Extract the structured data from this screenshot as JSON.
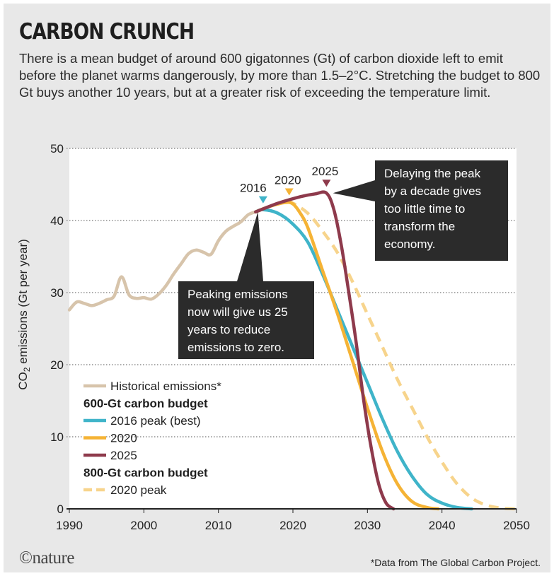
{
  "title": "CARBON CRUNCH",
  "subtitle": "There is a mean budget of around 600 gigatonnes (Gt) of carbon dioxide left to emit before the planet warms dangerously, by more than 1.5–2°C. Stretching the budget to 800 Gt buys another 10 years, but at a greater risk of exceeding the temperature limit.",
  "footer": {
    "logo": "©nature",
    "footnote": "*Data from The Global Carbon Project."
  },
  "annotations": {
    "now": "Peaking emissions now will give us 25 years to reduce emissions to zero.",
    "delay": "Delaying the peak by a decade gives too little time to transform the economy."
  },
  "peak_markers": [
    {
      "label": "2016",
      "year": 2016,
      "value": 41.5,
      "color": "#3fb4c9"
    },
    {
      "label": "2020",
      "year": 2019.5,
      "value": 42.6,
      "color": "#f5b335"
    },
    {
      "label": "2025",
      "year": 2024.5,
      "value": 43.8,
      "color": "#8e3a4c"
    }
  ],
  "legend": [
    {
      "type": "item",
      "label": "Historical emissions*",
      "color": "#d7c4ab",
      "dashed": false
    },
    {
      "type": "heading",
      "label": "600-Gt carbon budget"
    },
    {
      "type": "item",
      "label": "2016 peak (best)",
      "color": "#3fb4c9",
      "dashed": false
    },
    {
      "type": "item",
      "label": "2020",
      "color": "#f5b335",
      "dashed": false
    },
    {
      "type": "item",
      "label": "2025",
      "color": "#8e3a4c",
      "dashed": false
    },
    {
      "type": "heading",
      "label": "800-Gt carbon budget"
    },
    {
      "type": "item",
      "label": "2020 peak",
      "color": "#f7d48c",
      "dashed": true
    }
  ],
  "colors": {
    "background": "#e8e8e8",
    "plot_background": "#ffffff",
    "annotation_box": "#2b2b2b",
    "historical": "#d7c4ab",
    "teal": "#3fb4c9",
    "yellow": "#f5b335",
    "maroon": "#8e3a4c",
    "light_yellow": "#f7d48c"
  },
  "chart_data": {
    "type": "line",
    "xlabel": "",
    "ylabel": "CO2 emissions (Gt per year)",
    "xlim": [
      1990,
      2050
    ],
    "ylim": [
      0,
      50
    ],
    "x_ticks": [
      "1990",
      "2000",
      "2010",
      "2020",
      "2030",
      "2040",
      "2050"
    ],
    "y_ticks": [
      "0",
      "10",
      "20",
      "30",
      "40",
      "50"
    ],
    "grid": "horizontal dotted",
    "series": [
      {
        "name": "Historical emissions*",
        "color": "#d7c4ab",
        "x": [
          1990,
          1991,
          1992,
          1993,
          1994,
          1995,
          1996,
          1997,
          1998,
          1999,
          2000,
          2001,
          2002,
          2003,
          2004,
          2005,
          2006,
          2007,
          2008,
          2009,
          2010,
          2011,
          2012,
          2013,
          2014,
          2015
        ],
        "values": [
          27.6,
          28.7,
          28.5,
          28.2,
          28.5,
          29.0,
          29.5,
          32.2,
          29.7,
          29.2,
          29.3,
          29.1,
          29.8,
          31.0,
          32.6,
          34.0,
          35.4,
          35.9,
          35.6,
          35.3,
          37.2,
          38.5,
          39.2,
          39.8,
          40.8,
          41.2
        ]
      },
      {
        "name": "2016 peak (best)",
        "color": "#3fb4c9",
        "x": [
          2015,
          2016,
          2018,
          2020,
          2022,
          2024,
          2026,
          2028,
          2030,
          2032,
          2034,
          2036,
          2038,
          2040,
          2042,
          2044
        ],
        "values": [
          41.2,
          41.5,
          41.0,
          39.5,
          37.0,
          32.5,
          27.5,
          22.5,
          17.5,
          12.5,
          8.0,
          4.5,
          2.0,
          0.8,
          0.2,
          0
        ]
      },
      {
        "name": "2020",
        "color": "#f5b335",
        "x": [
          2015,
          2017,
          2019,
          2020,
          2021,
          2022,
          2024,
          2026,
          2028,
          2030,
          2032,
          2034,
          2036,
          2038,
          2039.5
        ],
        "values": [
          41.2,
          42.0,
          42.5,
          42.3,
          41.0,
          39.0,
          33.0,
          27.0,
          20.5,
          14.0,
          8.0,
          3.5,
          1.0,
          0.2,
          0
        ]
      },
      {
        "name": "2025",
        "color": "#8e3a4c",
        "x": [
          2015,
          2018,
          2021,
          2023,
          2024.5,
          2025.5,
          2026.5,
          2027.5,
          2028.5,
          2029.5,
          2030.5,
          2031.5,
          2032.5,
          2033.5
        ],
        "values": [
          41.2,
          42.4,
          43.3,
          43.7,
          43.8,
          41.5,
          36.5,
          30.0,
          23.0,
          15.0,
          8.5,
          3.5,
          0.8,
          0
        ]
      },
      {
        "name": "2020 peak",
        "dashed": true,
        "color": "#f7d48c",
        "x": [
          2015,
          2017,
          2019,
          2020,
          2022,
          2024,
          2026,
          2028,
          2030,
          2032,
          2034,
          2036,
          2038,
          2040,
          2042,
          2044,
          2046,
          2048,
          2050
        ],
        "values": [
          41.2,
          42.0,
          42.5,
          42.4,
          41.0,
          38.5,
          35.5,
          31.5,
          27.0,
          22.5,
          18.0,
          14.0,
          10.0,
          6.5,
          3.5,
          1.5,
          0.5,
          0.1,
          0
        ]
      }
    ]
  }
}
